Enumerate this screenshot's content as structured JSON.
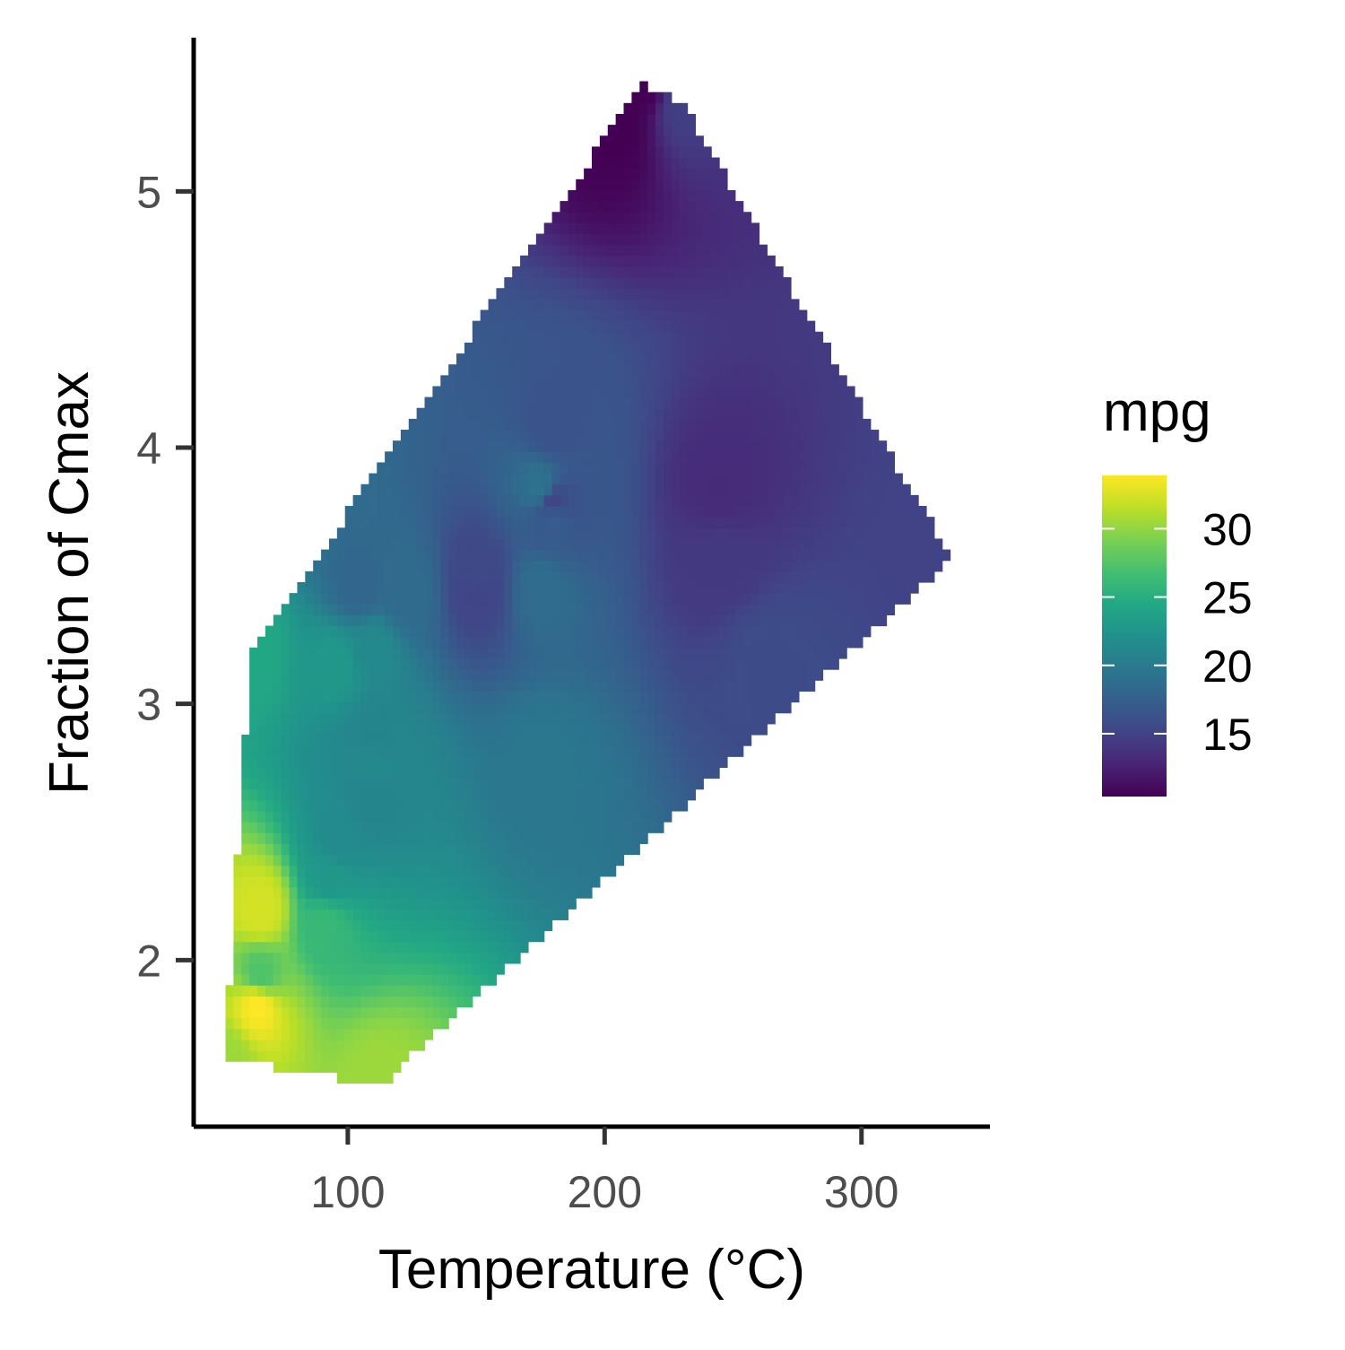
{
  "chart_data": {
    "type": "heatmap",
    "title": "",
    "xlabel": "Temperature (°C)",
    "ylabel": "Fraction of Cmax",
    "xlim": [
      40,
      350
    ],
    "ylim": [
      1.35,
      5.6
    ],
    "x_ticks": [
      100,
      200,
      300
    ],
    "x_tick_labels": [
      "100",
      "200",
      "300"
    ],
    "y_ticks": [
      2,
      3,
      4,
      5
    ],
    "y_tick_labels": [
      "2",
      "3",
      "4",
      "5"
    ],
    "grid": false,
    "colorscale": "viridis",
    "colorbar": {
      "title": "mpg",
      "range": [
        10.4,
        33.9
      ],
      "ticks": [
        15,
        20,
        25,
        30
      ],
      "tick_labels": [
        "15",
        "20",
        "25",
        "30"
      ],
      "placement": "right"
    },
    "points": [
      {
        "x": 110,
        "y": 2.62,
        "z": 21.0
      },
      {
        "x": 110,
        "y": 2.875,
        "z": 21.0
      },
      {
        "x": 93,
        "y": 2.32,
        "z": 22.8
      },
      {
        "x": 110,
        "y": 3.215,
        "z": 21.4
      },
      {
        "x": 175,
        "y": 3.44,
        "z": 18.7
      },
      {
        "x": 105,
        "y": 3.46,
        "z": 18.1
      },
      {
        "x": 245,
        "y": 3.57,
        "z": 14.3
      },
      {
        "x": 62,
        "y": 3.19,
        "z": 24.4
      },
      {
        "x": 95,
        "y": 3.15,
        "z": 22.8
      },
      {
        "x": 123,
        "y": 3.44,
        "z": 19.2
      },
      {
        "x": 123,
        "y": 3.44,
        "z": 17.8
      },
      {
        "x": 180,
        "y": 4.07,
        "z": 16.4
      },
      {
        "x": 180,
        "y": 3.73,
        "z": 17.3
      },
      {
        "x": 180,
        "y": 3.78,
        "z": 15.2
      },
      {
        "x": 205,
        "y": 5.25,
        "z": 10.4
      },
      {
        "x": 215,
        "y": 5.424,
        "z": 10.4
      },
      {
        "x": 230,
        "y": 5.345,
        "z": 14.7
      },
      {
        "x": 66,
        "y": 2.2,
        "z": 32.4
      },
      {
        "x": 52,
        "y": 1.615,
        "z": 30.4
      },
      {
        "x": 65,
        "y": 1.835,
        "z": 33.9
      },
      {
        "x": 97,
        "y": 2.465,
        "z": 21.5
      },
      {
        "x": 150,
        "y": 3.52,
        "z": 15.5
      },
      {
        "x": 150,
        "y": 3.435,
        "z": 15.2
      },
      {
        "x": 245,
        "y": 3.84,
        "z": 13.3
      },
      {
        "x": 175,
        "y": 3.845,
        "z": 19.2
      },
      {
        "x": 66,
        "y": 1.935,
        "z": 27.3
      },
      {
        "x": 91,
        "y": 2.14,
        "z": 26.0
      },
      {
        "x": 113,
        "y": 1.513,
        "z": 30.4
      },
      {
        "x": 264,
        "y": 3.17,
        "z": 15.8
      },
      {
        "x": 175,
        "y": 2.77,
        "z": 19.7
      },
      {
        "x": 335,
        "y": 3.57,
        "z": 15.0
      },
      {
        "x": 109,
        "y": 2.78,
        "z": 21.4
      }
    ]
  }
}
